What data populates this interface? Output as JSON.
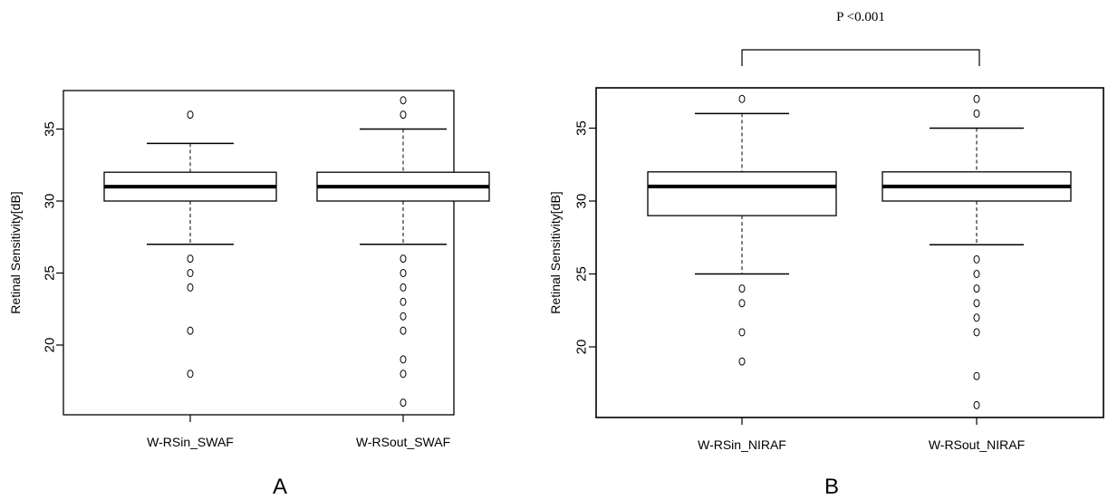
{
  "chart_data": [
    {
      "type": "boxplot",
      "panel_label": "A",
      "ylabel": "Retinal Sensitivity[dB]",
      "ylim": [
        15,
        37.5
      ],
      "yticks": [
        20,
        25,
        30,
        35
      ],
      "categories": [
        "W-RSin_SWAF",
        "W-RSout_SWAF"
      ],
      "boxes": [
        {
          "category": "W-RSin_SWAF",
          "whisker_low": 27,
          "q1": 30,
          "median": 31,
          "q3": 32,
          "whisker_high": 34,
          "outliers": [
            36,
            26,
            25,
            24,
            21,
            18
          ]
        },
        {
          "category": "W-RSout_SWAF",
          "whisker_low": 27,
          "q1": 30,
          "median": 31,
          "q3": 32,
          "whisker_high": 35,
          "outliers": [
            37,
            36,
            26,
            25,
            24,
            23,
            22,
            21,
            19,
            18,
            16
          ]
        }
      ]
    },
    {
      "type": "boxplot",
      "panel_label": "B",
      "ylabel": "Retinal Sensitivity[dB]",
      "ylim": [
        15,
        37.5
      ],
      "yticks": [
        20,
        25,
        30,
        35
      ],
      "categories": [
        "W-RSin_NIRAF",
        "W-RSout_NIRAF"
      ],
      "annotation": "P <0.001",
      "boxes": [
        {
          "category": "W-RSin_NIRAF",
          "whisker_low": 25,
          "q1": 29,
          "median": 31,
          "q3": 32,
          "whisker_high": 36,
          "outliers": [
            37,
            24,
            23,
            21,
            19
          ]
        },
        {
          "category": "W-RSout_NIRAF",
          "whisker_low": 27,
          "q1": 30,
          "median": 31,
          "q3": 32,
          "whisker_high": 35,
          "outliers": [
            37,
            36,
            26,
            25,
            24,
            23,
            22,
            21,
            18,
            16
          ]
        }
      ]
    }
  ]
}
